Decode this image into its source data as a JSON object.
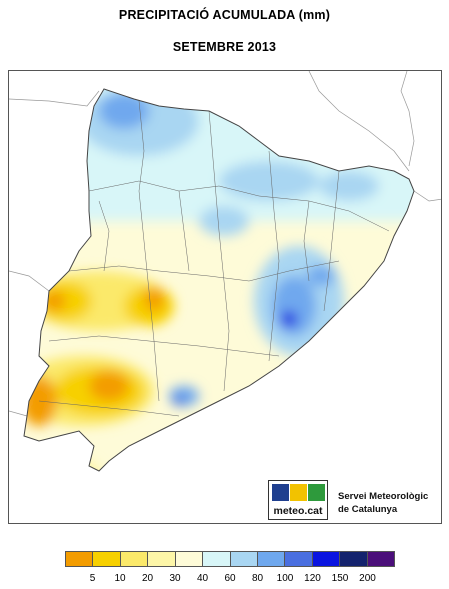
{
  "title_line1": "PRECIPITACIÓ ACUMULADA (mm)",
  "title_line2": "SETEMBRE 2013",
  "logo": {
    "url_text": "meteo.cat",
    "org_line1": "Servei Meteorològic",
    "org_line2": "de Catalunya",
    "colors": [
      "#1f3f8f",
      "#f2c200",
      "#2e9a3c"
    ]
  },
  "legend": {
    "colors": [
      "#f39c00",
      "#f7d000",
      "#fbe96a",
      "#fdf6a8",
      "#fefbd8",
      "#d8f6f8",
      "#a9d6f2",
      "#6fa8ee",
      "#4a6fe0",
      "#0a14e0",
      "#14236e",
      "#4b0f7a"
    ],
    "labels": [
      "5",
      "10",
      "20",
      "30",
      "40",
      "60",
      "80",
      "100",
      "120",
      "150",
      "200"
    ]
  }
}
